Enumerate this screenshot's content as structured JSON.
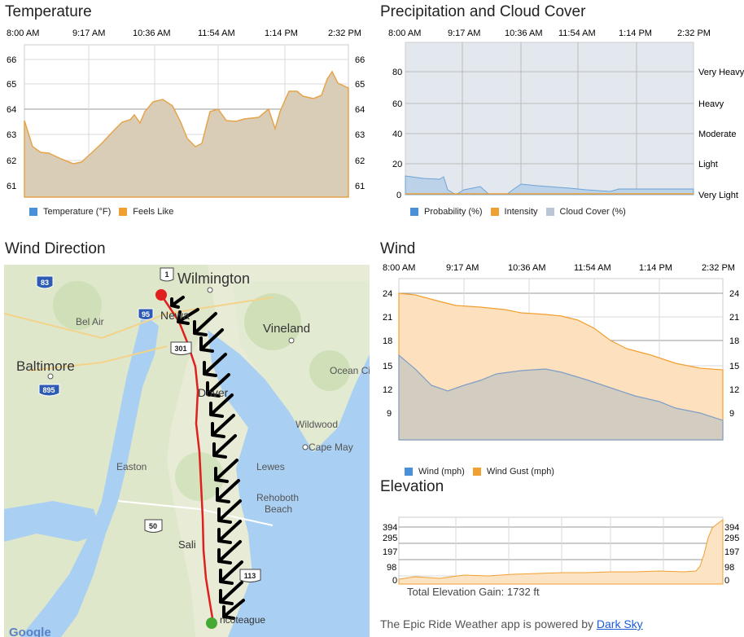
{
  "temperature": {
    "title": "Temperature",
    "x_ticks": [
      "8:00 AM",
      "9:17 AM",
      "10:36 AM",
      "11:54 AM",
      "1:14 PM",
      "2:32 PM"
    ],
    "y_ticks": [
      "66",
      "65",
      "64",
      "63",
      "62",
      "61"
    ],
    "legend": [
      {
        "label": "Temperature (°F)",
        "color": "#4a90d9"
      },
      {
        "label": "Feels Like",
        "color": "#f0a030"
      }
    ]
  },
  "precipitation": {
    "title": "Precipitation and Cloud Cover",
    "x_ticks": [
      "8:00 AM",
      "9:17 AM",
      "10:36 AM",
      "11:54 AM",
      "1:14 PM",
      "2:32 PM"
    ],
    "y_ticks": [
      "80",
      "60",
      "40",
      "20",
      "0"
    ],
    "intensity_labels": [
      "Very Heavy",
      "Heavy",
      "Moderate",
      "Light",
      "Very Light"
    ],
    "legend": [
      {
        "label": "Probability (%)",
        "color": "#4a90d9"
      },
      {
        "label": "Intensity",
        "color": "#f0a030"
      },
      {
        "label": "Cloud Cover (%)",
        "color": "#b9c6d6"
      }
    ]
  },
  "wind_direction": {
    "title": "Wind Direction",
    "map_labels": {
      "wilmington": "Wilmington",
      "bel_air": "Bel Air",
      "vineland": "Vineland",
      "baltimore": "Baltimore",
      "ocean_city": "Ocean Ci",
      "newark": "Newa",
      "dover": "Dover",
      "wildwood": "Wildwood",
      "cape_may": "Cape May",
      "easton": "Easton",
      "lewes": "Lewes",
      "rehoboth": "Rehoboth",
      "rehoboth2": "Beach",
      "salisbury": "Sali",
      "chincoteague": "ncoteague",
      "google": "Google"
    },
    "shields": {
      "i83": "83",
      "i95": "95",
      "i895": "895",
      "us1": "1",
      "us301": "301",
      "us50": "50",
      "us113": "113"
    }
  },
  "wind": {
    "title": "Wind",
    "x_ticks": [
      "8:00 AM",
      "9:17 AM",
      "10:36 AM",
      "11:54 AM",
      "1:14 PM",
      "2:32 PM"
    ],
    "y_ticks": [
      "24",
      "21",
      "18",
      "15",
      "12",
      "9"
    ],
    "legend": [
      {
        "label": "Wind (mph)",
        "color": "#4a90d9"
      },
      {
        "label": "Wind Gust (mph)",
        "color": "#f0a030"
      }
    ]
  },
  "elevation": {
    "title": "Elevation",
    "y_ticks": [
      "394",
      "295",
      "197",
      "98",
      "0"
    ],
    "total_gain": "Total Elevation Gain: 1732 ft"
  },
  "footer": {
    "text": "The Epic Ride Weather app is powered by ",
    "link": "Dark Sky"
  },
  "chart_data": [
    {
      "type": "area",
      "title": "Temperature",
      "x": [
        "8:00 AM",
        "9:17 AM",
        "10:36 AM",
        "11:54 AM",
        "1:14 PM",
        "2:32 PM"
      ],
      "ylim": [
        61,
        66
      ],
      "series": [
        {
          "name": "Temperature (°F)",
          "values": [
            63.5,
            61.9,
            64.3,
            63.9,
            63.6,
            64.9
          ]
        },
        {
          "name": "Feels Like",
          "values": [
            63.5,
            61.9,
            64.3,
            63.9,
            63.6,
            64.9
          ]
        }
      ]
    },
    {
      "type": "area",
      "title": "Precipitation and Cloud Cover",
      "x": [
        "8:00 AM",
        "9:17 AM",
        "10:36 AM",
        "11:54 AM",
        "1:14 PM",
        "2:32 PM"
      ],
      "ylim": [
        0,
        100
      ],
      "series": [
        {
          "name": "Probability (%)",
          "values": [
            11,
            0,
            6,
            4,
            4,
            4
          ]
        },
        {
          "name": "Intensity",
          "values": [
            1,
            0,
            1,
            1,
            1,
            1
          ]
        },
        {
          "name": "Cloud Cover (%)",
          "values": [
            100,
            100,
            100,
            100,
            100,
            100
          ]
        }
      ]
    },
    {
      "type": "area",
      "title": "Wind",
      "x": [
        "8:00 AM",
        "9:17 AM",
        "10:36 AM",
        "11:54 AM",
        "1:14 PM",
        "2:32 PM"
      ],
      "ylim": [
        8,
        24
      ],
      "series": [
        {
          "name": "Wind (mph)",
          "values": [
            16.3,
            12.0,
            14.2,
            13.8,
            11.5,
            8.5
          ]
        },
        {
          "name": "Wind Gust (mph)",
          "values": [
            24.0,
            22.3,
            21.7,
            20.0,
            17.2,
            14.7
          ]
        }
      ]
    },
    {
      "type": "area",
      "title": "Elevation",
      "ylim": [
        0,
        394
      ],
      "values": [
        20,
        35,
        40,
        45,
        50,
        45,
        55,
        60,
        65,
        70,
        394
      ]
    }
  ]
}
